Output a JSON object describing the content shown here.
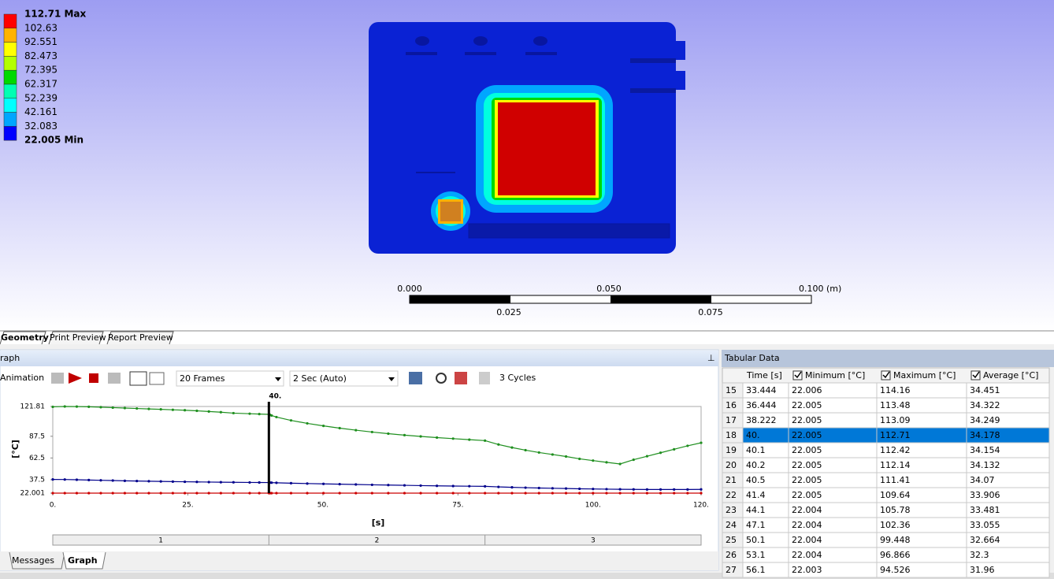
{
  "legend": {
    "labels": [
      "112.71 Max",
      "102.63",
      "92.551",
      "82.473",
      "72.395",
      "62.317",
      "52.239",
      "42.161",
      "32.083",
      "22.005 Min"
    ],
    "colors": [
      "#ff0000",
      "#ffb300",
      "#ffff00",
      "#b3ff00",
      "#00d900",
      "#00ffb3",
      "#00ffff",
      "#00a6ff",
      "#0000ff"
    ]
  },
  "scale_bar": {
    "top_labels": [
      "0.000",
      "0.050",
      "0.100 (m)"
    ],
    "bottom_labels": [
      "0.025",
      "0.075"
    ]
  },
  "tabs": [
    "Geometry",
    "Print Preview",
    "Report Preview"
  ],
  "graph_panel": {
    "title": "raph",
    "toolbar": {
      "animation": "Animation",
      "frames": "20 Frames",
      "duration": "2 Sec (Auto)",
      "cycles": "3 Cycles"
    },
    "steps": [
      "1",
      "2",
      "3"
    ]
  },
  "chart_data": {
    "type": "line",
    "y_label": "[°C]",
    "x_label": "[s]",
    "cursor": {
      "value": 40,
      "label": "40."
    },
    "xlim": [
      0,
      120
    ],
    "ylim": [
      22.001,
      121.81
    ],
    "xticks": [
      {
        "value": 0,
        "label": "0."
      },
      {
        "value": 25,
        "label": "25."
      },
      {
        "value": 50,
        "label": "50."
      },
      {
        "value": 75,
        "label": "75."
      },
      {
        "value": 100,
        "label": "100."
      },
      {
        "value": 120,
        "label": "120."
      }
    ],
    "yticks": [
      22.001,
      37.5,
      62.5,
      87.5,
      121.81
    ],
    "x": [
      0,
      2.22,
      4.44,
      6.67,
      8.89,
      11.11,
      13.33,
      15.56,
      17.78,
      20,
      22.22,
      24.44,
      26.67,
      28.89,
      31.11,
      33.444,
      36.444,
      38.222,
      40,
      40.1,
      40.2,
      40.5,
      41.4,
      44.1,
      47.1,
      50.1,
      53.1,
      56.1,
      59.1,
      62.1,
      65.1,
      68.1,
      71.1,
      74.1,
      77.1,
      80,
      82.5,
      85,
      87.5,
      90,
      92.5,
      95,
      97.5,
      100,
      102.5,
      105,
      107.5,
      110,
      112.5,
      115,
      117.5,
      120
    ],
    "series": [
      {
        "color": "#cc0000",
        "values": [
          22.008,
          22.008,
          22.008,
          22.008,
          22.008,
          22.008,
          22.008,
          22.008,
          22.008,
          22.008,
          22.008,
          22.008,
          22.008,
          22.008,
          22.008,
          22.006,
          22.005,
          22.005,
          22.005,
          22.005,
          22.005,
          22.005,
          22.005,
          22.005,
          22.004,
          22.004,
          22.004,
          22.003,
          22.003,
          22.003,
          22.003,
          22.003,
          22.003,
          22.003,
          22.003,
          22.003,
          22.002,
          22.002,
          22.002,
          22.002,
          22.002,
          22.002,
          22.002,
          22.002,
          22.002,
          22.002,
          22.002,
          22.002,
          22.002,
          22.002,
          22.002,
          22.002
        ]
      },
      {
        "color": "#1f8f1f",
        "values": [
          121.4,
          121.8,
          121.7,
          121.5,
          121,
          120.5,
          120,
          119.5,
          119,
          118.5,
          118,
          117.5,
          116.8,
          116,
          115.2,
          114.16,
          113.48,
          113.09,
          112.71,
          112.42,
          112.14,
          111.41,
          109.64,
          105.78,
          102.36,
          99.448,
          96.866,
          94.526,
          92.4,
          90.5,
          88.8,
          87.3,
          86,
          84.8,
          83.6,
          82.5,
          78,
          74.5,
          71.5,
          68.8,
          66.5,
          64.2,
          61.5,
          59.5,
          57.5,
          55.6,
          60.5,
          64.5,
          68.5,
          72.5,
          76.5,
          80
        ]
      },
      {
        "color": "#00008b",
        "values": [
          37.8,
          37.7,
          37.4,
          37.1,
          36.8,
          36.5,
          36.2,
          35.95,
          35.7,
          35.5,
          35.3,
          35.1,
          34.9,
          34.75,
          34.6,
          34.451,
          34.322,
          34.249,
          34.178,
          34.154,
          34.132,
          34.07,
          33.906,
          33.481,
          33.055,
          32.664,
          32.3,
          31.96,
          31.6,
          31.3,
          31,
          30.7,
          30.4,
          30.2,
          30,
          29.8,
          29.2,
          28.7,
          28.3,
          27.9,
          27.6,
          27.3,
          27,
          26.8,
          26.6,
          26.4,
          26.3,
          26.2,
          26.2,
          26.2,
          26.2,
          26.3
        ]
      }
    ]
  },
  "table": {
    "title": "Tabular Data",
    "headers": [
      "Time [s]",
      "Minimum [°C]",
      "Maximum [°C]",
      "Average [°C]"
    ],
    "selected_row": 3,
    "rows": [
      [
        "15",
        "33.444",
        "22.006",
        "114.16",
        "34.451"
      ],
      [
        "16",
        "36.444",
        "22.005",
        "113.48",
        "34.322"
      ],
      [
        "17",
        "38.222",
        "22.005",
        "113.09",
        "34.249"
      ],
      [
        "18",
        "40.",
        "22.005",
        "112.71",
        "34.178"
      ],
      [
        "19",
        "40.1",
        "22.005",
        "112.42",
        "34.154"
      ],
      [
        "20",
        "40.2",
        "22.005",
        "112.14",
        "34.132"
      ],
      [
        "21",
        "40.5",
        "22.005",
        "111.41",
        "34.07"
      ],
      [
        "22",
        "41.4",
        "22.005",
        "109.64",
        "33.906"
      ],
      [
        "23",
        "44.1",
        "22.004",
        "105.78",
        "33.481"
      ],
      [
        "24",
        "47.1",
        "22.004",
        "102.36",
        "33.055"
      ],
      [
        "25",
        "50.1",
        "22.004",
        "99.448",
        "32.664"
      ],
      [
        "26",
        "53.1",
        "22.004",
        "96.866",
        "32.3"
      ],
      [
        "27",
        "56.1",
        "22.003",
        "94.526",
        "31.96"
      ]
    ]
  },
  "bottom_tabs": [
    "Messages",
    "Graph"
  ]
}
